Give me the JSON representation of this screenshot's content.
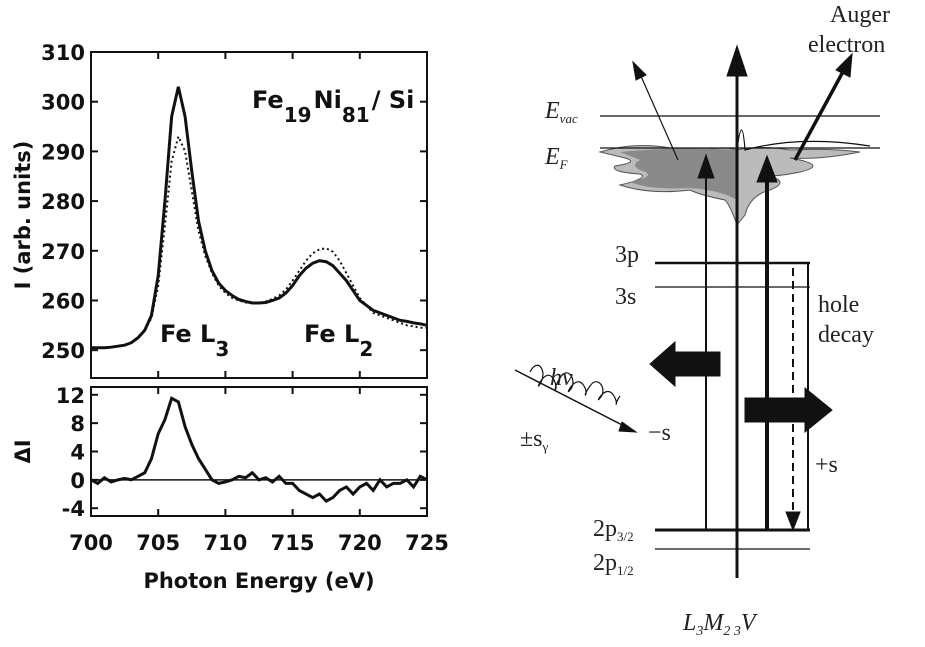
{
  "chart_data": [
    {
      "type": "line",
      "y_label": "I (arb. units)",
      "annotations": [
        [
          "Fe",
          "19",
          "Ni",
          "81",
          "/ Si"
        ],
        [
          "Fe L",
          "3"
        ],
        [
          "Fe L",
          "2"
        ]
      ],
      "x": [
        700,
        700.5,
        701,
        701.5,
        702,
        702.5,
        703,
        703.5,
        704,
        704.5,
        705,
        705.5,
        706,
        706.5,
        707,
        707.5,
        708,
        708.5,
        709,
        709.5,
        710,
        710.5,
        711,
        711.5,
        712,
        712.5,
        713,
        713.5,
        714,
        714.5,
        715,
        715.5,
        716,
        716.5,
        717,
        717.5,
        718,
        718.5,
        719,
        719.5,
        720,
        720.5,
        721,
        721.5,
        722,
        722.5,
        723,
        723.5,
        724,
        724.5,
        725
      ],
      "xlim": [
        700,
        725
      ],
      "ylim": [
        244.4,
        310
      ],
      "yticks": [
        250,
        260,
        270,
        280,
        290,
        300,
        310
      ],
      "series": [
        {
          "color": "#111111",
          "style": "solid",
          "values": [
            250.5,
            250.5,
            250.5,
            250.6,
            250.8,
            251,
            251.5,
            252.5,
            254,
            257,
            265,
            280,
            297,
            303,
            297,
            286,
            276,
            270,
            266,
            263.5,
            262,
            261,
            260.2,
            259.8,
            259.5,
            259.5,
            259.6,
            260,
            260.5,
            261.5,
            263,
            265,
            266.5,
            267.5,
            268,
            267.8,
            267,
            265.5,
            264,
            262,
            260,
            259,
            258,
            257.5,
            257,
            256.5,
            256,
            255.8,
            255.5,
            255.3,
            255
          ]
        },
        {
          "color": "#111111",
          "style": "dotted",
          "values": [
            250.5,
            250.5,
            250.5,
            250.6,
            250.8,
            251,
            251.5,
            252.5,
            254,
            256.5,
            263,
            275,
            288,
            293,
            290,
            282,
            274,
            269,
            265.5,
            263,
            261.5,
            260.5,
            260,
            259.6,
            259.5,
            259.5,
            259.8,
            260.3,
            261,
            262.2,
            264,
            266,
            268,
            269.5,
            270.3,
            270.5,
            269.8,
            268,
            265.5,
            263,
            260.5,
            259,
            257.5,
            257,
            256.5,
            256,
            255.5,
            255,
            254.8,
            254.5,
            254.5
          ]
        }
      ]
    },
    {
      "type": "line",
      "y_label": "ΔI",
      "x_label": "Photon Energy (eV)",
      "x": [
        700,
        700.5,
        701,
        701.5,
        702,
        702.5,
        703,
        703.5,
        704,
        704.5,
        705,
        705.5,
        706,
        706.5,
        707,
        707.5,
        708,
        708.5,
        709,
        709.5,
        710,
        710.5,
        711,
        711.5,
        712,
        712.5,
        713,
        713.5,
        714,
        714.5,
        715,
        715.5,
        716,
        716.5,
        717,
        717.5,
        718,
        718.5,
        719,
        719.5,
        720,
        720.5,
        721,
        721.5,
        722,
        722.5,
        723,
        723.5,
        724,
        724.5,
        725
      ],
      "xlim": [
        700,
        725
      ],
      "xticks": [
        700,
        705,
        710,
        715,
        720,
        725
      ],
      "ylim": [
        -5.1,
        13.1
      ],
      "yticks": [
        -4,
        0,
        4,
        8,
        12
      ],
      "series": [
        {
          "color": "#111111",
          "style": "solid",
          "values": [
            0,
            -0.5,
            0.3,
            -0.3,
            0,
            0.2,
            0,
            0.5,
            1,
            3,
            6.5,
            8.5,
            11.5,
            11,
            7.5,
            5,
            3,
            1.5,
            0,
            -0.5,
            -0.3,
            0,
            0.5,
            0.3,
            1,
            0,
            0.3,
            -0.3,
            0.5,
            -0.5,
            -0.5,
            -1.5,
            -2,
            -2.5,
            -2,
            -3,
            -2.5,
            -1.5,
            -1,
            -2,
            -1,
            -0.5,
            -1.5,
            0,
            -1,
            -0.5,
            -0.5,
            0,
            -1,
            0.5,
            0
          ]
        }
      ]
    }
  ],
  "diagram": {
    "auger": [
      "Auger",
      "electron"
    ],
    "e_vac": [
      "E",
      "vac"
    ],
    "e_f": [
      "E",
      "F"
    ],
    "level_3p": "3p",
    "level_3s": "3s",
    "hole_decay": [
      "hole",
      "decay"
    ],
    "photon": "hν",
    "photon_spin": [
      "±s",
      "γ"
    ],
    "minus_s": "−s",
    "plus_s": "+s",
    "level_2p32": [
      "2p",
      "3/2"
    ],
    "level_2p12": [
      "2p",
      "1/2"
    ],
    "process": [
      "L",
      "3",
      "M",
      "2 3",
      "V"
    ]
  }
}
